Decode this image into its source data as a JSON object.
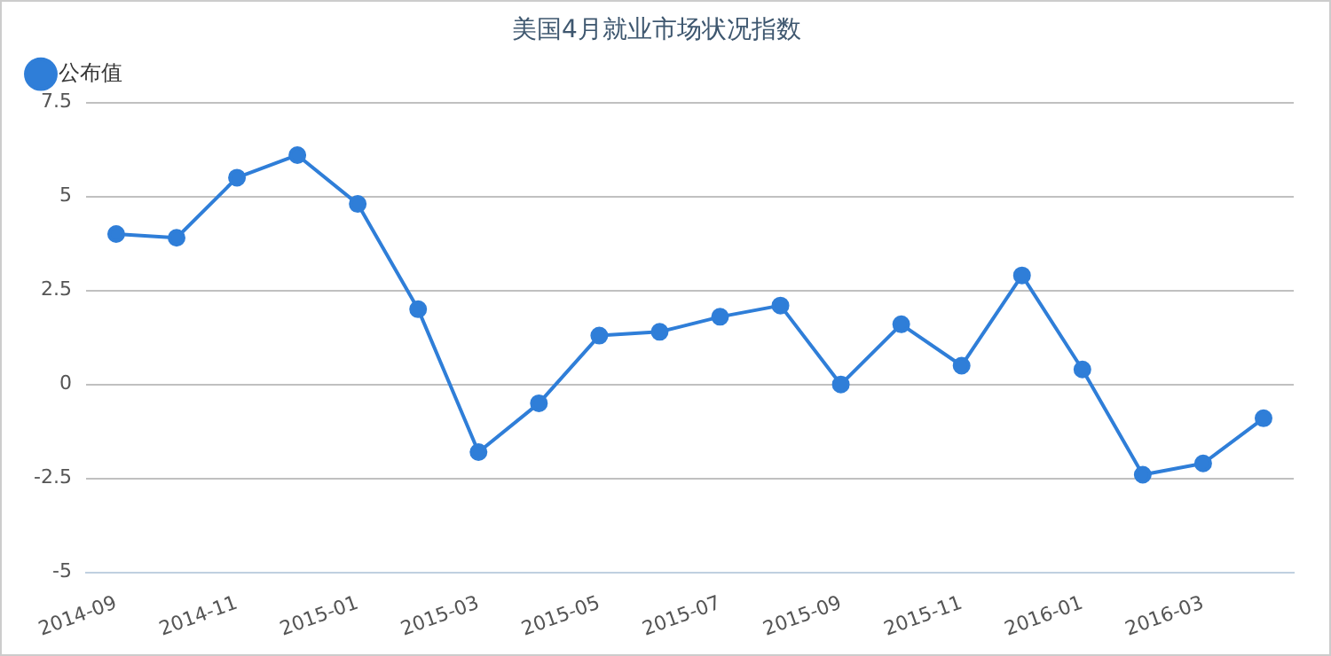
{
  "chart_data": {
    "type": "line",
    "title": "美国4月就业市场状况指数",
    "categories": [
      "2014-09",
      null,
      "2014-11",
      null,
      "2015-01",
      null,
      "2015-03",
      null,
      "2015-05",
      null,
      "2015-07",
      null,
      "2015-09",
      null,
      "2015-11",
      null,
      "2016-01",
      null,
      "2016-03",
      null
    ],
    "series": [
      {
        "name": "公布值",
        "color": "#2f7ed8",
        "values": [
          4.0,
          3.9,
          5.5,
          6.1,
          4.8,
          2.0,
          -1.8,
          -0.5,
          1.3,
          1.4,
          1.8,
          2.1,
          0,
          1.6,
          0.5,
          2.9,
          0.4,
          -2.4,
          -2.1,
          -0.9
        ]
      }
    ],
    "ylim": [
      -5,
      7.5
    ],
    "yticks": [
      -5,
      -2.5,
      0,
      2.5,
      5,
      7.5
    ],
    "grid": "y",
    "legend": "top left",
    "marker": "circle",
    "line_style": "solid"
  }
}
